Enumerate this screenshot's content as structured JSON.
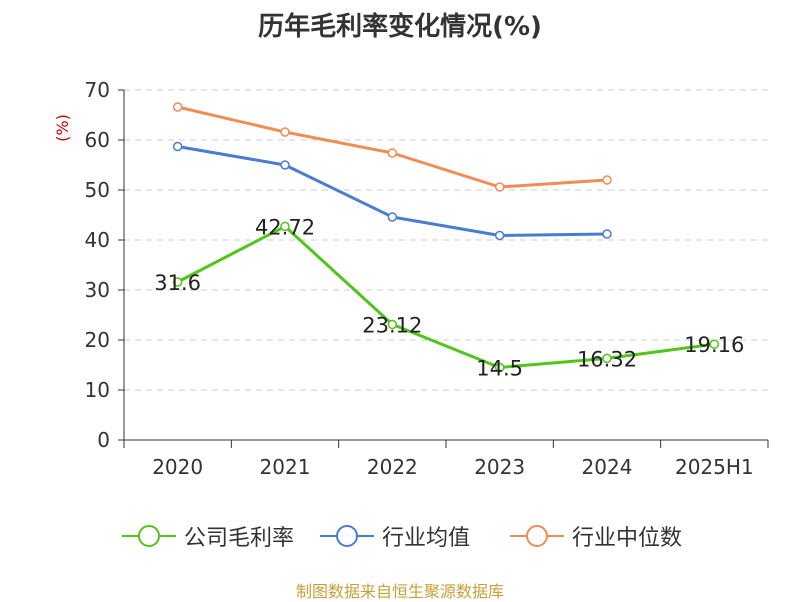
{
  "title": "历年毛利率变化情况(%)",
  "source": "制图数据来自恒生聚源数据库",
  "colors": {
    "company": "#52c41a",
    "industry_avg": "#4a7bd6",
    "industry_median": "#f28b54",
    "ylabel": "#cc0000",
    "grid": "#cccccc",
    "axis": "#333333",
    "source": "#c8a13a"
  },
  "chart_data": {
    "type": "line",
    "title": "历年毛利率变化情况(%)",
    "xlabel": "",
    "ylabel": "(%)",
    "ylim": [
      0,
      70
    ],
    "yticks": [
      0,
      10,
      20,
      30,
      40,
      50,
      60,
      70
    ],
    "grid": true,
    "legend_position": "bottom",
    "categories": [
      "2020",
      "2021",
      "2022",
      "2023",
      "2024",
      "2025H1"
    ],
    "series": [
      {
        "name": "公司毛利率",
        "color": "#52c41a",
        "values": [
          31.6,
          42.72,
          23.12,
          14.5,
          16.32,
          19.16
        ],
        "labels": [
          "31.6",
          "42.72",
          "23.12",
          "14.5",
          "16.32",
          "19.16"
        ]
      },
      {
        "name": "行业均值",
        "color": "#4a7bd6",
        "values": [
          58.7,
          55.0,
          44.6,
          40.9,
          41.2,
          null
        ]
      },
      {
        "name": "行业中位数",
        "color": "#f28b54",
        "values": [
          66.6,
          61.6,
          57.4,
          50.6,
          52.0,
          null
        ]
      }
    ]
  }
}
